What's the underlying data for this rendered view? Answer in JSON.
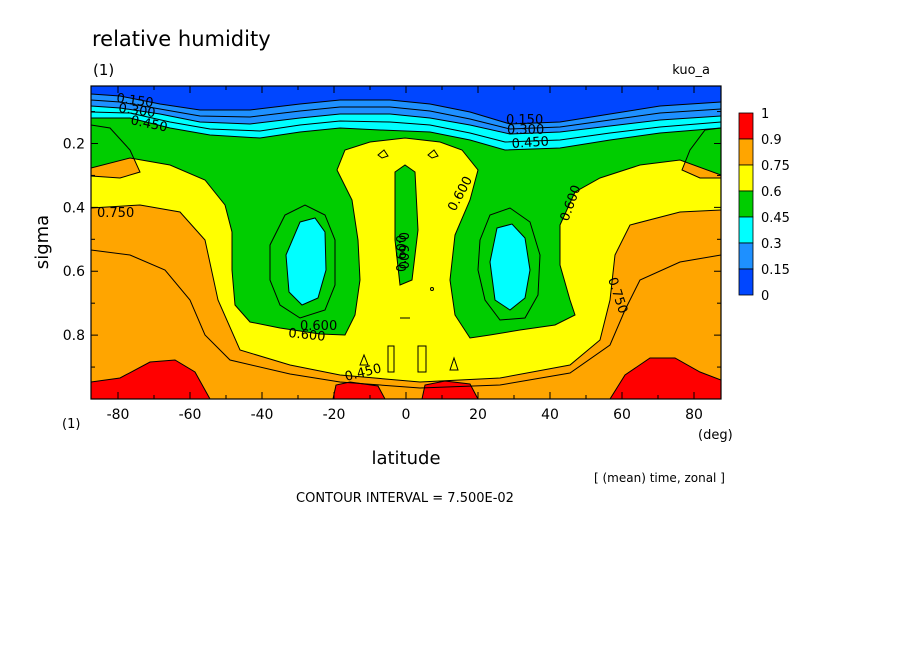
{
  "chart_data": {
    "type": "contour",
    "title": "relative humidity",
    "panel_label": "(1)",
    "panel_label_bottom": "(1)",
    "run_name": "kuo_a",
    "xlabel": "latitude",
    "x_unit": "(deg)",
    "ylabel": "sigma",
    "xlim": [
      -87.5,
      87.5
    ],
    "ylim": [
      1.0,
      0.02
    ],
    "x_ticks": [
      "-80",
      "-60",
      "-40",
      "-20",
      "0",
      "20",
      "40",
      "60",
      "80"
    ],
    "x_tick_values": [
      -80,
      -60,
      -40,
      -20,
      0,
      20,
      40,
      60,
      80
    ],
    "y_ticks": [
      "0.2",
      "0.4",
      "0.6",
      "0.8"
    ],
    "y_tick_values": [
      0.2,
      0.4,
      0.6,
      0.8
    ],
    "averaging_note": "[ (mean) time, zonal ]",
    "contour_interval_text": "CONTOUR INTERVAL = 7.500E-02",
    "contour_labels": [
      "0.150",
      "0.300",
      "0.450",
      "0.600",
      "0.750",
      "0.150",
      "0.300",
      "0.450",
      "0.600",
      "0.600",
      "0.600",
      "0.600",
      "0.600",
      "0.750",
      "0.450"
    ],
    "colorbar": {
      "levels": [
        "1",
        "0.9",
        "0.75",
        "0.6",
        "0.45",
        "0.3",
        "0.15",
        "0"
      ],
      "colors": [
        "#ff0000",
        "#ffa500",
        "#ffff00",
        "#00cd00",
        "#00ffff",
        "#1e90ff",
        "#0046ff"
      ]
    },
    "grid": false
  }
}
